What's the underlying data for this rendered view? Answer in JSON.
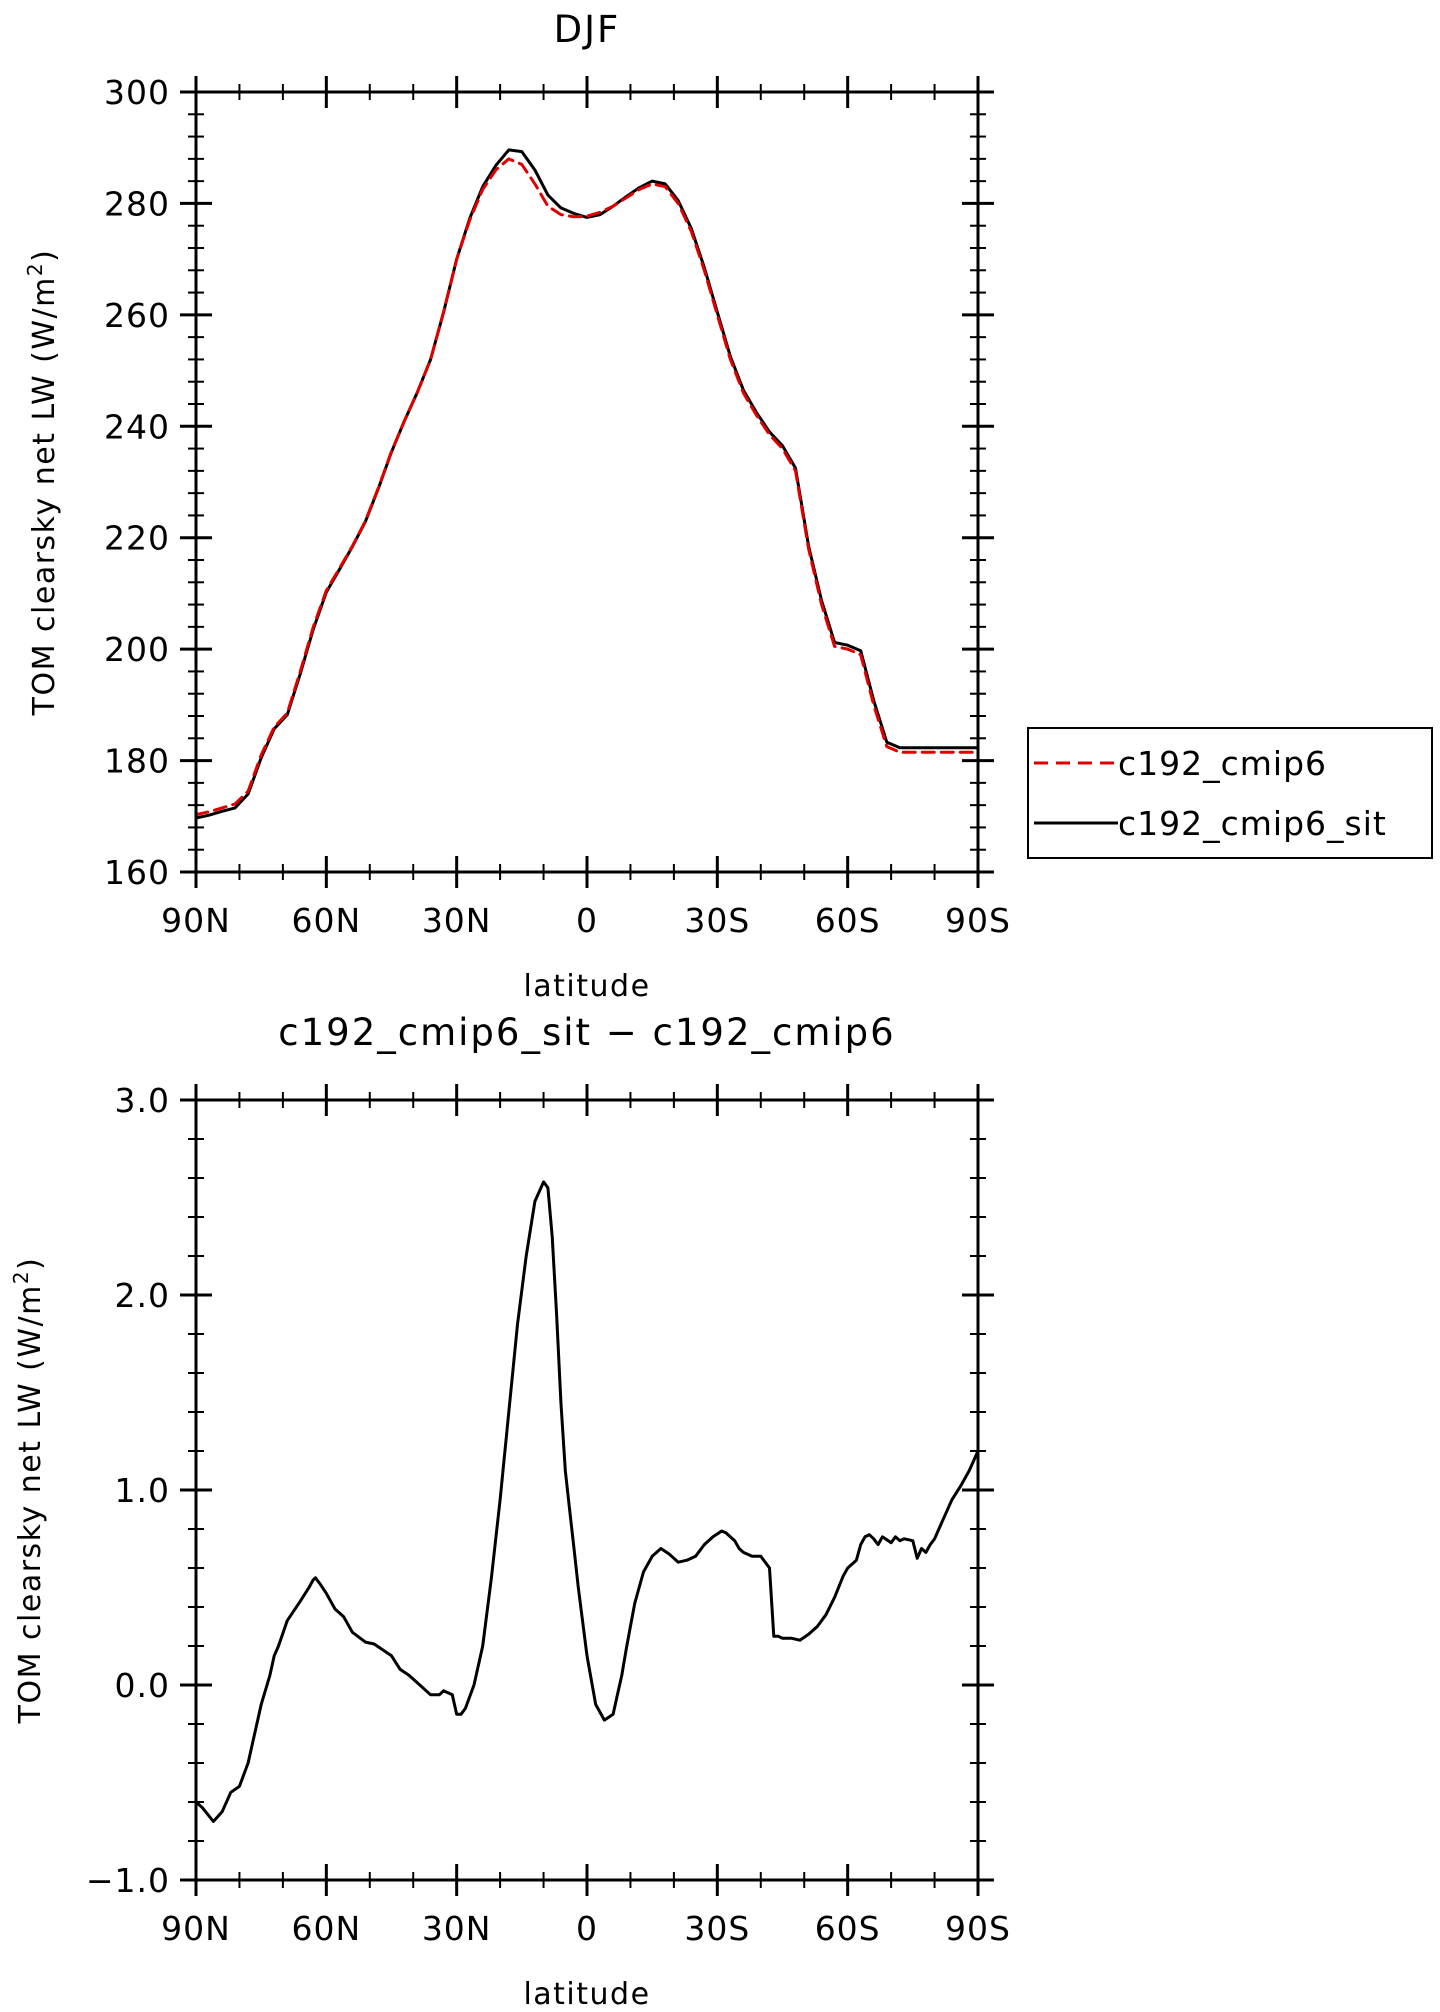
{
  "chart_data": [
    {
      "type": "line",
      "title": "DJF",
      "xlabel": "latitude",
      "ylabel": "TOM clearsky net LW (W/m²)",
      "ylabel_parts": {
        "prefix": "TOM clearsky net LW (W/m",
        "sup": "2",
        "suffix": ")"
      },
      "xlim": [
        90,
        -90
      ],
      "ylim": [
        160,
        300
      ],
      "x_ticks": [
        90,
        60,
        30,
        0,
        -30,
        -60,
        -90
      ],
      "x_tick_labels": [
        "90N",
        "60N",
        "30N",
        "0",
        "30S",
        "60S",
        "90S"
      ],
      "y_ticks": [
        160,
        180,
        200,
        220,
        240,
        260,
        280,
        300
      ],
      "y_tick_labels": [
        "160",
        "180",
        "200",
        "220",
        "240",
        "260",
        "280",
        "300"
      ],
      "legend_position": "right",
      "x": [
        90,
        87,
        84,
        81,
        78,
        75,
        72,
        69,
        66,
        63,
        60,
        57,
        54,
        51,
        48,
        45,
        42,
        39,
        36,
        33,
        30,
        27,
        24,
        21,
        18,
        15,
        12,
        9,
        6,
        3,
        0,
        -3,
        -6,
        -9,
        -12,
        -15,
        -18,
        -21,
        -24,
        -27,
        -30,
        -33,
        -36,
        -39,
        -42,
        -45,
        -48,
        -51,
        -54,
        -57,
        -60,
        -63,
        -66,
        -69,
        -72,
        -75,
        -78,
        -81,
        -84,
        -87,
        -90
      ],
      "series": [
        {
          "name": "c192_cmip6",
          "color": "#e00000",
          "dash": "dashed",
          "values": [
            170.3,
            170.8,
            171.5,
            172.2,
            174.5,
            181,
            186,
            188.5,
            196,
            204,
            210.5,
            214.5,
            218.5,
            223,
            229,
            235.5,
            241,
            246.2,
            252,
            260.5,
            270,
            277,
            282.5,
            286,
            288,
            287,
            283.5,
            279.5,
            278,
            277.6,
            277.7,
            278.4,
            279.5,
            281,
            282.5,
            283.5,
            283,
            280,
            275,
            268,
            260,
            252,
            246,
            242,
            238.5,
            236,
            232,
            218,
            208,
            200.5,
            200,
            199,
            190,
            182.5,
            181.5,
            181.5,
            181.5,
            181.5,
            181.5,
            181.5,
            181.5
          ]
        },
        {
          "name": "c192_cmip6_sit",
          "color": "#000000",
          "dash": "solid",
          "values": [
            169.7,
            170.2,
            170.9,
            171.5,
            174.0,
            180.5,
            185.7,
            188.2,
            195.6,
            203.6,
            210.2,
            214.3,
            218.4,
            222.9,
            228.9,
            235.4,
            241.0,
            246.2,
            252.0,
            260.5,
            270.0,
            277.3,
            283.0,
            286.8,
            289.6,
            289.3,
            286.0,
            281.5,
            279.2,
            278.2,
            277.5,
            278.0,
            279.5,
            281.2,
            282.8,
            284.0,
            283.5,
            280.5,
            275.5,
            268.5,
            260.5,
            252.5,
            246.5,
            242.5,
            239.0,
            236.5,
            232.5,
            218.5,
            208.7,
            201.2,
            200.7,
            199.7,
            190.8,
            183.3,
            182.3,
            182.3,
            182.3,
            182.3,
            182.3,
            182.3,
            182.3
          ]
        }
      ]
    },
    {
      "type": "line",
      "title": "c192_cmip6_sit − c192_cmip6",
      "xlabel": "latitude",
      "ylabel": "TOM clearsky net LW (W/m²)",
      "ylabel_parts": {
        "prefix": "TOM clearsky net LW (W/m",
        "sup": "2",
        "suffix": ")"
      },
      "xlim": [
        90,
        -90
      ],
      "ylim": [
        -1.0,
        3.0
      ],
      "x_ticks": [
        90,
        60,
        30,
        0,
        -30,
        -60,
        -90
      ],
      "x_tick_labels": [
        "90N",
        "60N",
        "30N",
        "0",
        "30S",
        "60S",
        "90S"
      ],
      "y_ticks": [
        -1.0,
        0.0,
        1.0,
        2.0,
        3.0
      ],
      "y_tick_labels": [
        "−1.0",
        "0.0",
        "1.0",
        "2.0",
        "3.0"
      ],
      "series": [
        {
          "name": "c192_cmip6_sit − c192_cmip6",
          "color": "#000000",
          "dash": "solid",
          "x": [
            90,
            88.5,
            86,
            84,
            82,
            80,
            78,
            75,
            73,
            72,
            71,
            69,
            66,
            64,
            63,
            62.5,
            61.5,
            60,
            58,
            56,
            54,
            51,
            49,
            47,
            45,
            43,
            41,
            39,
            36,
            34,
            33,
            31,
            30,
            29,
            28,
            26,
            24,
            22,
            20,
            18,
            16,
            14,
            12,
            10,
            9,
            8,
            7,
            6,
            5,
            4,
            3,
            2,
            0,
            -2,
            -4,
            -6,
            -7,
            -8,
            -9,
            -10,
            -11,
            -13,
            -15,
            -17,
            -19,
            -21,
            -23,
            -25,
            -27,
            -29,
            -31,
            -32,
            -34,
            -35,
            -36,
            -38,
            -40,
            -42,
            -43,
            -44,
            -45,
            -47,
            -49,
            -51,
            -53,
            -55,
            -57,
            -59,
            -60,
            -62,
            -63,
            -64,
            -65,
            -66,
            -67,
            -68,
            -70,
            -71,
            -72,
            -73,
            -75,
            -76,
            -77,
            -78,
            -79,
            -80,
            -81,
            -82,
            -84,
            -86,
            -88,
            -90
          ],
          "values": [
            -0.6,
            -0.63,
            -0.7,
            -0.65,
            -0.55,
            -0.52,
            -0.4,
            -0.1,
            0.05,
            0.15,
            0.2,
            0.33,
            0.43,
            0.5,
            0.54,
            0.55,
            0.52,
            0.47,
            0.39,
            0.35,
            0.27,
            0.22,
            0.21,
            0.18,
            0.15,
            0.08,
            0.05,
            0.01,
            -0.05,
            -0.05,
            -0.03,
            -0.05,
            -0.15,
            -0.15,
            -0.12,
            0.0,
            0.2,
            0.55,
            0.95,
            1.4,
            1.85,
            2.2,
            2.48,
            2.58,
            2.55,
            2.3,
            1.9,
            1.45,
            1.1,
            0.9,
            0.7,
            0.5,
            0.15,
            -0.1,
            -0.18,
            -0.15,
            -0.05,
            0.05,
            0.18,
            0.3,
            0.42,
            0.58,
            0.66,
            0.7,
            0.67,
            0.63,
            0.64,
            0.66,
            0.72,
            0.76,
            0.79,
            0.78,
            0.74,
            0.7,
            0.68,
            0.66,
            0.66,
            0.6,
            0.25,
            0.25,
            0.24,
            0.24,
            0.23,
            0.26,
            0.3,
            0.36,
            0.45,
            0.56,
            0.6,
            0.64,
            0.72,
            0.76,
            0.77,
            0.75,
            0.72,
            0.76,
            0.73,
            0.76,
            0.74,
            0.75,
            0.74,
            0.65,
            0.7,
            0.68,
            0.72,
            0.75,
            0.8,
            0.85,
            0.95,
            1.02,
            1.1,
            1.2
          ]
        }
      ]
    }
  ]
}
